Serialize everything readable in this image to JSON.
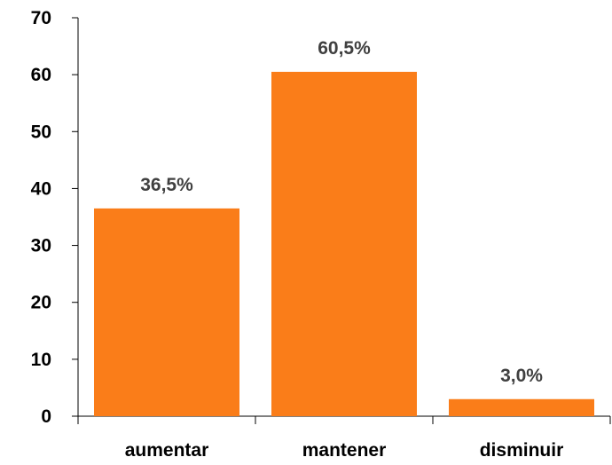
{
  "chart_data": {
    "type": "bar",
    "categories": [
      "aumentar",
      "mantener",
      "disminuir"
    ],
    "values": [
      36.5,
      60.5,
      3.0
    ],
    "data_labels": [
      "36,5%",
      "60,5%",
      "3,0%"
    ],
    "ylim": [
      0,
      70
    ],
    "yticks": [
      "0",
      "10",
      "20",
      "30",
      "40",
      "50",
      "60",
      "70"
    ],
    "title": "",
    "xlabel": "",
    "ylabel": "",
    "grid": false,
    "legend": "none",
    "bar_color": "#FA7D19"
  }
}
